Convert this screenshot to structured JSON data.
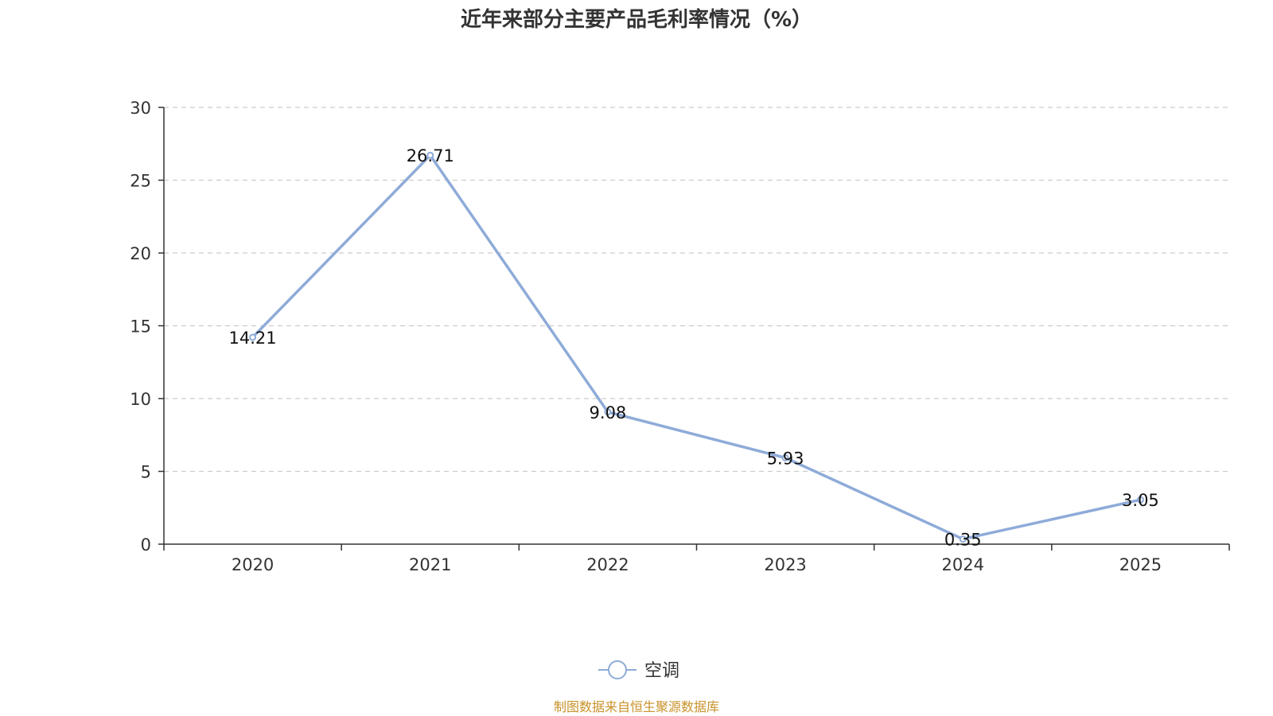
{
  "chart_data": {
    "type": "line",
    "title": "近年来部分主要产品毛利率情况（%）",
    "categories": [
      "2020",
      "2021",
      "2022",
      "2023",
      "2024",
      "2025"
    ],
    "series": [
      {
        "name": "空调",
        "values": [
          14.21,
          26.71,
          9.08,
          5.93,
          0.35,
          3.05
        ],
        "color": "#8eabd8"
      }
    ],
    "data_labels": [
      "14.21",
      "26.71",
      "9.08",
      "5.93",
      "0.35",
      "3.05"
    ],
    "ylim": [
      0,
      30
    ],
    "yticks": [
      0,
      5,
      10,
      15,
      20,
      25,
      30
    ],
    "grid": true,
    "legend": "bottom-center",
    "xlabel": "",
    "ylabel": ""
  },
  "footer": {
    "source": "制图数据来自恒生聚源数据库"
  },
  "colors": {
    "axis": "#333333",
    "grid": "#cccccc",
    "source": "#c8922a"
  }
}
